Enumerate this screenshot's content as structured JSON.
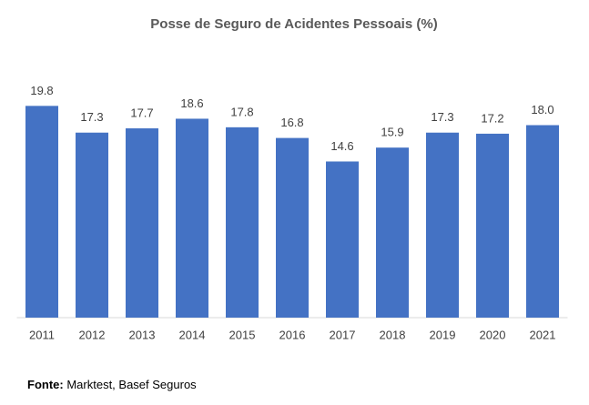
{
  "chart_data": {
    "type": "bar",
    "title": "Posse de Seguro de Acidentes Pessoais (%)",
    "categories": [
      "2011",
      "2012",
      "2013",
      "2014",
      "2015",
      "2016",
      "2017",
      "2018",
      "2019",
      "2020",
      "2021"
    ],
    "values": [
      19.8,
      17.3,
      17.7,
      18.6,
      17.8,
      16.8,
      14.6,
      15.9,
      17.3,
      17.2,
      18.0
    ],
    "value_labels": [
      "19.8",
      "17.3",
      "17.7",
      "18.6",
      "17.8",
      "16.8",
      "14.6",
      "15.9",
      "17.3",
      "17.2",
      "18.0"
    ],
    "color": "#4472c4",
    "ylim": [
      0,
      20
    ],
    "source_label": "Fonte:",
    "source": "Marktest, Basef Seguros"
  }
}
